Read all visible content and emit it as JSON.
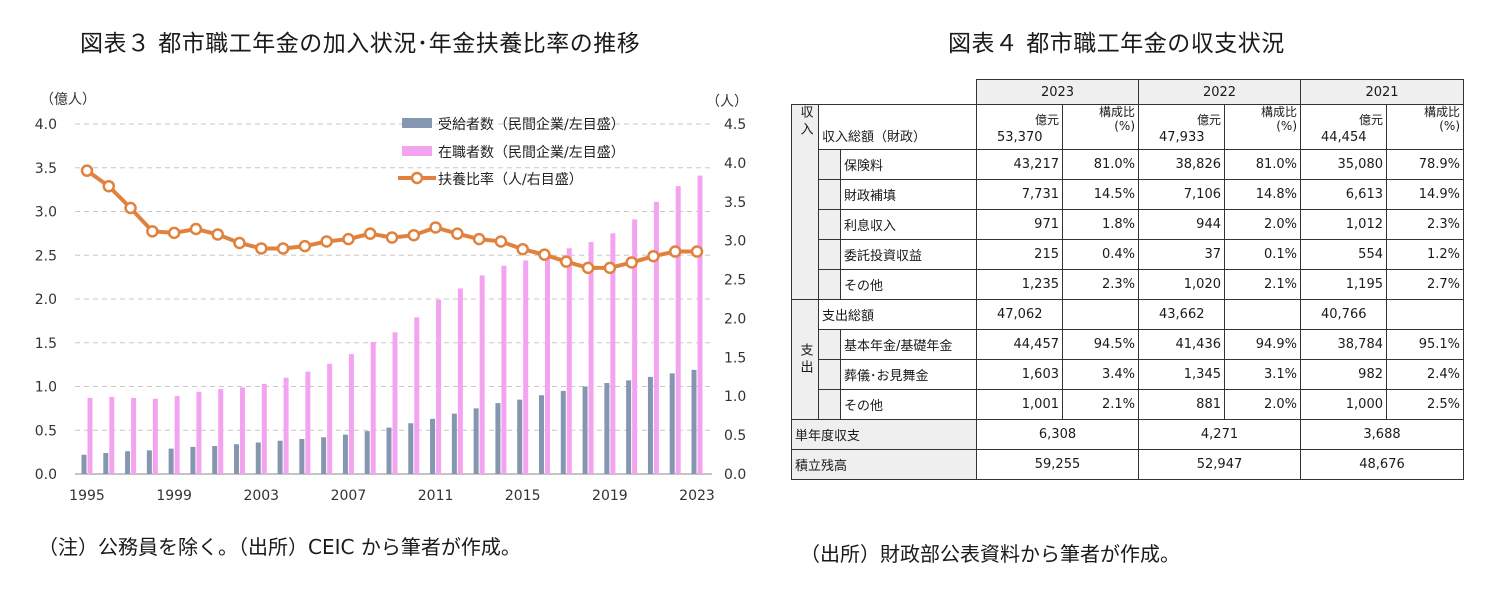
{
  "chart_title": "図表３ 都市職工年金の加入状況･年金扶養比率の推移",
  "table_title": "図表４ 都市職工年金の収支状況",
  "chart_note": "（注）公務員を除く。（出所）CEIC から筆者が作成。",
  "table_note": "（出所）財政部公表資料から筆者が作成。",
  "chart_data": {
    "type": "bar+line",
    "left_axis_unit": "（億人）",
    "right_axis_unit": "（人）",
    "y_left_ticks": [
      "0.0",
      "0.5",
      "1.0",
      "1.5",
      "2.0",
      "2.5",
      "3.0",
      "3.5",
      "4.0"
    ],
    "y_right_ticks": [
      "0.0",
      "0.5",
      "1.0",
      "1.5",
      "2.0",
      "2.5",
      "3.0",
      "3.5",
      "4.0",
      "4.5"
    ],
    "ylim_left": [
      0,
      4.0
    ],
    "ylim_right": [
      0,
      4.5
    ],
    "x_tick_labels": [
      "1995",
      "1999",
      "2003",
      "2007",
      "2011",
      "2015",
      "2019",
      "2023"
    ],
    "categories": [
      1995,
      1996,
      1997,
      1998,
      1999,
      2000,
      2001,
      2002,
      2003,
      2004,
      2005,
      2006,
      2007,
      2008,
      2009,
      2010,
      2011,
      2012,
      2013,
      2014,
      2015,
      2016,
      2017,
      2018,
      2019,
      2020,
      2021,
      2022,
      2023
    ],
    "series": [
      {
        "name": "受給者数（民間企業/左目盛）",
        "axis": "left",
        "type": "bar",
        "color": "#8496b0",
        "values": [
          0.22,
          0.24,
          0.26,
          0.27,
          0.29,
          0.31,
          0.32,
          0.34,
          0.36,
          0.38,
          0.4,
          0.42,
          0.45,
          0.49,
          0.53,
          0.58,
          0.63,
          0.69,
          0.75,
          0.81,
          0.85,
          0.9,
          0.95,
          1.0,
          1.04,
          1.07,
          1.11,
          1.15,
          1.19
        ]
      },
      {
        "name": "在職者数（民間企業/左目盛）",
        "axis": "left",
        "type": "bar",
        "color": "#f4a3f0",
        "values": [
          0.87,
          0.88,
          0.87,
          0.86,
          0.89,
          0.94,
          0.97,
          0.99,
          1.03,
          1.1,
          1.17,
          1.26,
          1.37,
          1.51,
          1.62,
          1.79,
          1.99,
          2.12,
          2.27,
          2.38,
          2.44,
          2.51,
          2.58,
          2.65,
          2.75,
          2.91,
          3.11,
          3.29,
          3.41
        ]
      },
      {
        "name": "扶養比率（人/右目盛）",
        "axis": "right",
        "type": "line",
        "color": "#e0823d",
        "values": [
          3.9,
          3.7,
          3.42,
          3.12,
          3.1,
          3.15,
          3.08,
          2.97,
          2.9,
          2.9,
          2.93,
          2.99,
          3.02,
          3.09,
          3.04,
          3.07,
          3.17,
          3.09,
          3.02,
          2.99,
          2.89,
          2.82,
          2.73,
          2.65,
          2.65,
          2.72,
          2.8,
          2.86,
          2.86
        ]
      }
    ]
  },
  "table": {
    "years": [
      "2023",
      "2022",
      "2021"
    ],
    "unit_oku": "億元",
    "unit_ratio_line1": "構成比",
    "unit_ratio_line2": "(%)",
    "revenue_group": "収入",
    "expense_group": "支出",
    "revenue_total": {
      "label": "収入総額（財政）",
      "values": [
        "53,370",
        "47,933",
        "44,454"
      ]
    },
    "revenue_items": [
      {
        "label": "保険料",
        "cells": [
          "43,217",
          "81.0%",
          "38,826",
          "81.0%",
          "35,080",
          "78.9%"
        ]
      },
      {
        "label": "財政補填",
        "cells": [
          "7,731",
          "14.5%",
          "7,106",
          "14.8%",
          "6,613",
          "14.9%"
        ]
      },
      {
        "label": "利息収入",
        "cells": [
          "971",
          "1.8%",
          "944",
          "2.0%",
          "1,012",
          "2.3%"
        ]
      },
      {
        "label": "委託投資収益",
        "cells": [
          "215",
          "0.4%",
          "37",
          "0.1%",
          "554",
          "1.2%"
        ]
      },
      {
        "label": "その他",
        "cells": [
          "1,235",
          "2.3%",
          "1,020",
          "2.1%",
          "1,195",
          "2.7%"
        ]
      }
    ],
    "expense_total": {
      "label": "支出総額",
      "values": [
        "47,062",
        "43,662",
        "40,766"
      ]
    },
    "expense_items": [
      {
        "label": "基本年金/基礎年金",
        "cells": [
          "44,457",
          "94.5%",
          "41,436",
          "94.9%",
          "38,784",
          "95.1%"
        ]
      },
      {
        "label": "葬儀･お見舞金",
        "cells": [
          "1,603",
          "3.4%",
          "1,345",
          "3.1%",
          "982",
          "2.4%"
        ]
      },
      {
        "label": "その他",
        "cells": [
          "1,001",
          "2.1%",
          "881",
          "2.0%",
          "1,000",
          "2.5%"
        ]
      }
    ],
    "balance": {
      "label": "単年度収支",
      "values": [
        "6,308",
        "4,271",
        "3,688"
      ]
    },
    "reserve": {
      "label": "積立残高",
      "values": [
        "59,255",
        "52,947",
        "48,676"
      ]
    }
  }
}
